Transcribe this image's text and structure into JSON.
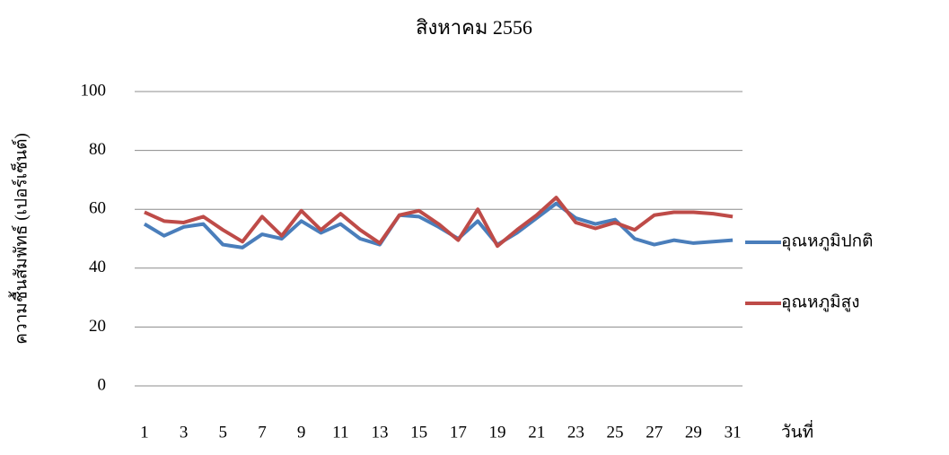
{
  "chart_data": {
    "type": "line",
    "title": "สิงหาคม 2556",
    "x_label": "วันที่",
    "y_label": "ความชื้นสัมพัทธ์ (เปอร์เซ็นต์)",
    "categories": [
      1,
      null,
      3,
      null,
      5,
      null,
      7,
      null,
      9,
      null,
      11,
      null,
      13,
      null,
      15,
      null,
      17,
      null,
      19,
      null,
      21,
      null,
      23,
      null,
      25,
      null,
      27,
      null,
      29,
      null,
      31
    ],
    "series": [
      {
        "name": "อุณหภูมิปกติ",
        "color": "#4a7ebb",
        "values": [
          55,
          51,
          54,
          55,
          48,
          47,
          51.5,
          50,
          56,
          52,
          55,
          50,
          48,
          58,
          57.5,
          54,
          50,
          56,
          48,
          52,
          57,
          62,
          57,
          55,
          56.5,
          50,
          48,
          49.5,
          48.5,
          49,
          49.5
        ]
      },
      {
        "name": "อุณหภูมิสูง",
        "color": "#be4b48",
        "values": [
          59,
          56,
          55.5,
          57.5,
          53,
          49,
          57.5,
          51,
          59.5,
          53,
          58.5,
          53,
          48.5,
          58,
          59.5,
          55,
          49.5,
          60,
          47.5,
          53,
          58,
          64,
          55.5,
          53.5,
          55.5,
          53,
          58,
          59,
          59,
          58.5,
          57.5
        ]
      }
    ],
    "ylim": [
      0,
      100
    ],
    "yticks": [
      0,
      20,
      40,
      60,
      80,
      100
    ],
    "grid": true,
    "legend": "right"
  }
}
